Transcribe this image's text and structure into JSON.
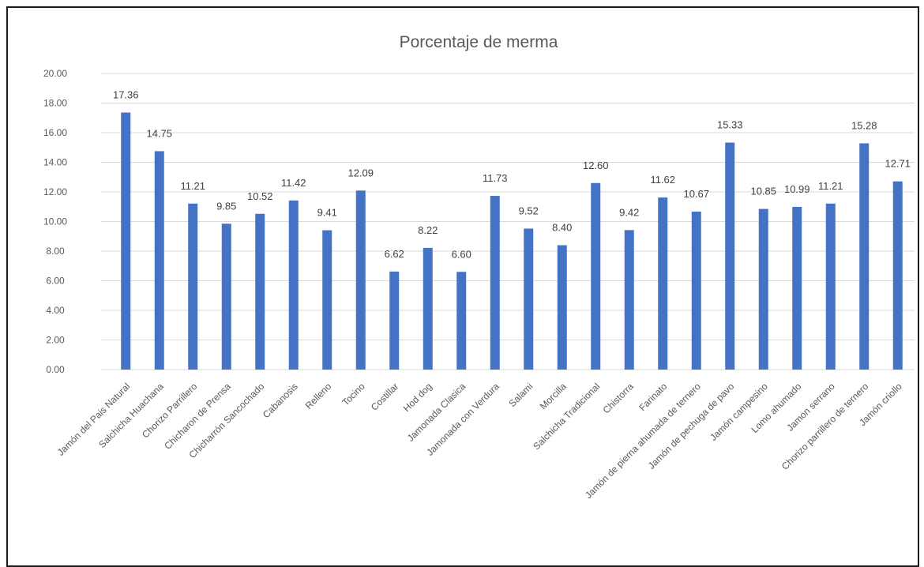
{
  "chart_data": {
    "type": "bar",
    "title": "Porcentaje de merma",
    "xlabel": "",
    "ylabel": "",
    "ylim": [
      0,
      20
    ],
    "yticks": [
      "0.00",
      "2.00",
      "4.00",
      "6.00",
      "8.00",
      "10.00",
      "12.00",
      "14.00",
      "16.00",
      "18.00",
      "20.00"
    ],
    "grid": true,
    "legend": "none",
    "bar_color": "#4472C4",
    "categories": [
      "Jamón del Pais Natural",
      "Salchicha Huachana",
      "Chorizo Parrillero",
      "Chicharon de Prensa",
      "Chicharrón Sancochado",
      "Cabanosis",
      "Relleno",
      "Tocino",
      "Costillar",
      "Hod dog",
      "Jamonada Clasica",
      "Jamonada con Verdura",
      "Salami",
      "Morcilla",
      "Salchicha Tradicional",
      "Chistorra",
      "Farinato",
      "Jamón de pierna ahumada de ternero",
      "Jamón de pechuga de pavo",
      "Jamón campesino",
      "Lomo ahumado",
      "Jamon serrano",
      "Chorizo parrillero de ternero",
      "Jamón criollo"
    ],
    "values": [
      17.36,
      14.75,
      11.21,
      9.85,
      10.52,
      11.42,
      9.41,
      12.09,
      6.62,
      8.22,
      6.6,
      11.73,
      9.52,
      8.4,
      12.6,
      9.42,
      11.62,
      10.67,
      15.33,
      10.85,
      10.99,
      11.21,
      15.28,
      12.71
    ],
    "value_labels": [
      "17.36",
      "14.75",
      "11.21",
      "9.85",
      "10.52",
      "11.42",
      "9.41",
      "12.09",
      "6.62",
      "8.22",
      "6.60",
      "11.73",
      "9.52",
      "8.40",
      "12.60",
      "9.42",
      "11.62",
      "10.67",
      "15.33",
      "10.85",
      "10.99",
      "11.21",
      "15.28",
      "12.71"
    ]
  }
}
